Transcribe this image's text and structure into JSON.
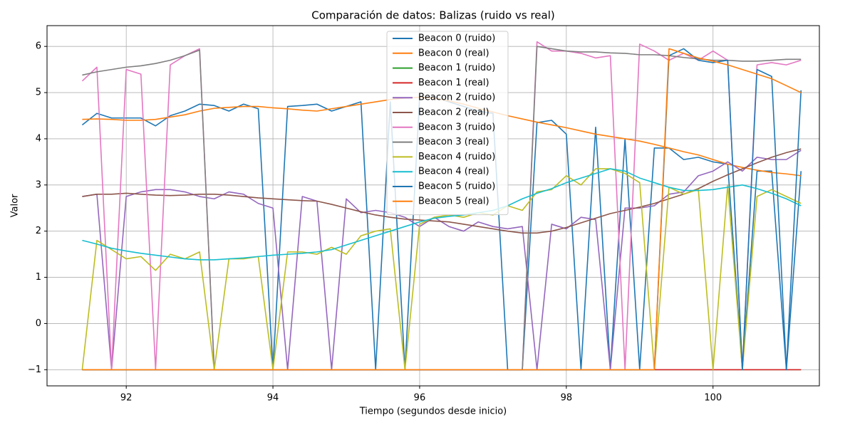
{
  "chart_data": {
    "type": "line",
    "title": "Comparación de datos: Balizas (ruido vs real)",
    "x_label": "Tiempo (segundos desde inicio)",
    "y_label": "Valor",
    "xlim": [
      90.92,
      101.45
    ],
    "ylim": [
      -1.35,
      6.45
    ],
    "xticks": [
      92,
      94,
      96,
      98,
      100
    ],
    "yticks": [
      {
        "value": -1,
        "label": "−1"
      },
      0,
      1,
      2,
      3,
      4,
      5,
      6
    ],
    "grid": true,
    "legend_position": "upper center",
    "x": [
      91.4,
      91.6,
      91.8,
      92.0,
      92.2,
      92.4,
      92.6,
      92.8,
      93.0,
      93.2,
      93.4,
      93.6,
      93.8,
      94.0,
      94.2,
      94.4,
      94.6,
      94.8,
      95.0,
      95.2,
      95.4,
      95.6,
      95.8,
      96.0,
      96.2,
      96.4,
      96.6,
      96.8,
      97.0,
      97.2,
      97.4,
      97.6,
      97.8,
      98.0,
      98.2,
      98.4,
      98.6,
      98.8,
      99.0,
      99.2,
      99.4,
      99.6,
      99.8,
      100.0,
      100.2,
      100.4,
      100.6,
      100.8,
      101.0,
      101.2
    ],
    "series": [
      {
        "name": "Beacon 0 (ruido)",
        "color": "#1f77b4",
        "values": [
          4.3,
          4.55,
          4.45,
          4.45,
          4.45,
          4.28,
          4.5,
          4.6,
          4.75,
          4.72,
          4.6,
          4.75,
          4.65,
          -1,
          4.7,
          4.72,
          4.75,
          4.6,
          4.7,
          4.8,
          -1,
          4.8,
          -1,
          4.9,
          4.9,
          4.8,
          4.7,
          4.6,
          4.55,
          -1,
          -1,
          4.35,
          4.4,
          4.1,
          -1,
          4.25,
          -1,
          4.0,
          -1,
          3.8,
          3.8,
          3.55,
          3.6,
          3.5,
          3.45,
          -1,
          3.3,
          3.3,
          -1,
          3.3
        ]
      },
      {
        "name": "Beacon 0 (real)",
        "color": "#ff7f0e",
        "values": [
          4.42,
          4.43,
          4.42,
          4.4,
          4.4,
          4.42,
          4.47,
          4.52,
          4.6,
          4.66,
          4.68,
          4.7,
          4.7,
          4.67,
          4.65,
          4.62,
          4.6,
          4.65,
          4.7,
          4.75,
          4.8,
          4.85,
          4.88,
          4.9,
          4.88,
          4.82,
          4.75,
          4.66,
          4.58,
          4.5,
          4.43,
          4.36,
          4.3,
          4.24,
          4.17,
          4.1,
          4.05,
          4.0,
          3.95,
          3.88,
          3.8,
          3.72,
          3.65,
          3.55,
          3.45,
          3.38,
          3.32,
          3.27,
          3.24,
          3.2
        ]
      },
      {
        "name": "Beacon 1 (ruido)",
        "color": "#2ca02c",
        "values": [
          -1,
          -1,
          -1,
          -1,
          -1,
          -1,
          -1,
          -1,
          -1,
          -1,
          -1,
          -1,
          -1,
          -1,
          -1,
          -1,
          -1,
          -1,
          -1,
          -1,
          -1,
          -1,
          -1,
          -1,
          -1,
          -1,
          -1,
          -1,
          -1,
          -1,
          -1,
          -1,
          -1,
          -1,
          -1,
          -1,
          -1,
          -1,
          -1,
          -1,
          -1,
          -1,
          -1,
          -1,
          -1,
          -1,
          -1,
          -1,
          -1,
          -1
        ]
      },
      {
        "name": "Beacon 1 (real)",
        "color": "#d62728",
        "values": [
          -1,
          -1,
          -1,
          -1,
          -1,
          -1,
          -1,
          -1,
          -1,
          -1,
          -1,
          -1,
          -1,
          -1,
          -1,
          -1,
          -1,
          -1,
          -1,
          -1,
          -1,
          -1,
          -1,
          -1,
          -1,
          -1,
          -1,
          -1,
          -1,
          -1,
          -1,
          -1,
          -1,
          -1,
          -1,
          -1,
          -1,
          -1,
          -1,
          -1,
          -1,
          -1,
          -1,
          -1,
          -1,
          -1,
          -1,
          -1,
          -1,
          -1
        ]
      },
      {
        "name": "Beacon 2 (ruido)",
        "color": "#9467bd",
        "values": [
          2.75,
          2.8,
          -1,
          2.75,
          2.85,
          2.9,
          2.9,
          2.85,
          2.75,
          2.7,
          2.85,
          2.8,
          2.6,
          2.5,
          -1,
          2.75,
          2.65,
          -1,
          2.7,
          2.4,
          2.45,
          2.4,
          2.3,
          2.1,
          2.3,
          2.1,
          2.0,
          2.2,
          2.1,
          2.05,
          2.1,
          -1,
          2.15,
          2.05,
          2.3,
          2.25,
          -1,
          2.5,
          2.5,
          2.55,
          2.8,
          2.85,
          3.2,
          3.3,
          3.5,
          3.3,
          3.6,
          3.55,
          3.55,
          3.75
        ]
      },
      {
        "name": "Beacon 2 (real)",
        "color": "#8c564b",
        "values": [
          2.75,
          2.8,
          2.8,
          2.82,
          2.8,
          2.78,
          2.77,
          2.78,
          2.8,
          2.8,
          2.78,
          2.75,
          2.72,
          2.7,
          2.68,
          2.66,
          2.65,
          2.58,
          2.5,
          2.42,
          2.35,
          2.3,
          2.26,
          2.24,
          2.22,
          2.2,
          2.15,
          2.1,
          2.05,
          2.0,
          1.96,
          1.96,
          2.0,
          2.08,
          2.18,
          2.28,
          2.38,
          2.45,
          2.52,
          2.6,
          2.7,
          2.8,
          2.92,
          3.08,
          3.22,
          3.35,
          3.48,
          3.6,
          3.7,
          3.78
        ]
      },
      {
        "name": "Beacon 3 (ruido)",
        "color": "#e377c2",
        "values": [
          5.25,
          5.55,
          -1,
          5.5,
          5.4,
          -1,
          5.6,
          5.8,
          5.95,
          -1,
          -1,
          -1,
          -1,
          -1,
          -1,
          -1,
          -1,
          -1,
          -1,
          -1,
          -1,
          -1,
          -1,
          -1,
          -1,
          -1,
          -1,
          -1,
          -1,
          -1,
          -1,
          6.1,
          5.9,
          5.9,
          5.85,
          5.75,
          5.8,
          -1,
          6.05,
          5.9,
          5.7,
          5.85,
          5.7,
          5.9,
          5.7,
          -1,
          5.6,
          5.65,
          5.6,
          5.7
        ]
      },
      {
        "name": "Beacon 3 (real)",
        "color": "#7f7f7f",
        "values": [
          5.38,
          5.45,
          5.5,
          5.55,
          5.58,
          5.63,
          5.7,
          5.8,
          5.92,
          -1,
          -1,
          -1,
          -1,
          -1,
          -1,
          -1,
          -1,
          -1,
          -1,
          -1,
          -1,
          -1,
          -1,
          -1,
          -1,
          -1,
          -1,
          -1,
          -1,
          -1,
          -1,
          6.0,
          5.95,
          5.9,
          5.88,
          5.88,
          5.86,
          5.85,
          5.82,
          5.82,
          5.8,
          5.76,
          5.73,
          5.7,
          5.7,
          5.68,
          5.68,
          5.7,
          5.72,
          5.72
        ]
      },
      {
        "name": "Beacon 4 (ruido)",
        "color": "#bcbd22",
        "values": [
          -1,
          1.8,
          1.6,
          1.4,
          1.45,
          1.15,
          1.5,
          1.4,
          1.55,
          -1,
          1.4,
          1.4,
          1.45,
          -1,
          1.55,
          1.55,
          1.5,
          1.65,
          1.5,
          1.9,
          2.0,
          2.05,
          -1,
          2.15,
          2.3,
          2.35,
          2.3,
          2.4,
          2.35,
          2.55,
          2.45,
          2.85,
          2.9,
          3.2,
          3.0,
          3.35,
          3.35,
          3.25,
          3.05,
          -1,
          2.95,
          2.8,
          2.9,
          -1,
          3.0,
          -1,
          2.75,
          2.9,
          2.75,
          2.6
        ]
      },
      {
        "name": "Beacon 4 (real)",
        "color": "#17becf",
        "values": [
          1.8,
          1.72,
          1.63,
          1.57,
          1.52,
          1.48,
          1.44,
          1.4,
          1.38,
          1.38,
          1.4,
          1.42,
          1.45,
          1.48,
          1.5,
          1.52,
          1.55,
          1.6,
          1.7,
          1.8,
          1.9,
          2.0,
          2.1,
          2.2,
          2.28,
          2.32,
          2.35,
          2.4,
          2.45,
          2.55,
          2.7,
          2.82,
          2.92,
          3.05,
          3.15,
          3.25,
          3.35,
          3.3,
          3.15,
          3.05,
          2.95,
          2.88,
          2.88,
          2.9,
          2.95,
          3.0,
          2.92,
          2.82,
          2.7,
          2.55
        ]
      },
      {
        "name": "Beacon 5 (ruido)",
        "color": "#1f77b4",
        "values": [
          -1,
          -1,
          -1,
          -1,
          -1,
          -1,
          -1,
          -1,
          -1,
          -1,
          -1,
          -1,
          -1,
          -1,
          -1,
          -1,
          -1,
          -1,
          -1,
          -1,
          -1,
          -1,
          -1,
          -1,
          -1,
          -1,
          -1,
          -1,
          -1,
          -1,
          -1,
          -1,
          -1,
          -1,
          -1,
          -1,
          -1,
          -1,
          -1,
          -1,
          5.8,
          5.95,
          5.7,
          5.65,
          5.7,
          -1,
          5.5,
          5.35,
          -1,
          5.05
        ]
      },
      {
        "name": "Beacon 5 (real)",
        "color": "#ff7f0e",
        "values": [
          -1,
          -1,
          -1,
          -1,
          -1,
          -1,
          -1,
          -1,
          -1,
          -1,
          -1,
          -1,
          -1,
          -1,
          -1,
          -1,
          -1,
          -1,
          -1,
          -1,
          -1,
          -1,
          -1,
          -1,
          -1,
          -1,
          -1,
          -1,
          -1,
          -1,
          -1,
          -1,
          -1,
          -1,
          -1,
          -1,
          -1,
          -1,
          -1,
          -1,
          5.95,
          5.85,
          5.75,
          5.68,
          5.6,
          5.5,
          5.4,
          5.3,
          5.15,
          5.0
        ]
      }
    ]
  }
}
